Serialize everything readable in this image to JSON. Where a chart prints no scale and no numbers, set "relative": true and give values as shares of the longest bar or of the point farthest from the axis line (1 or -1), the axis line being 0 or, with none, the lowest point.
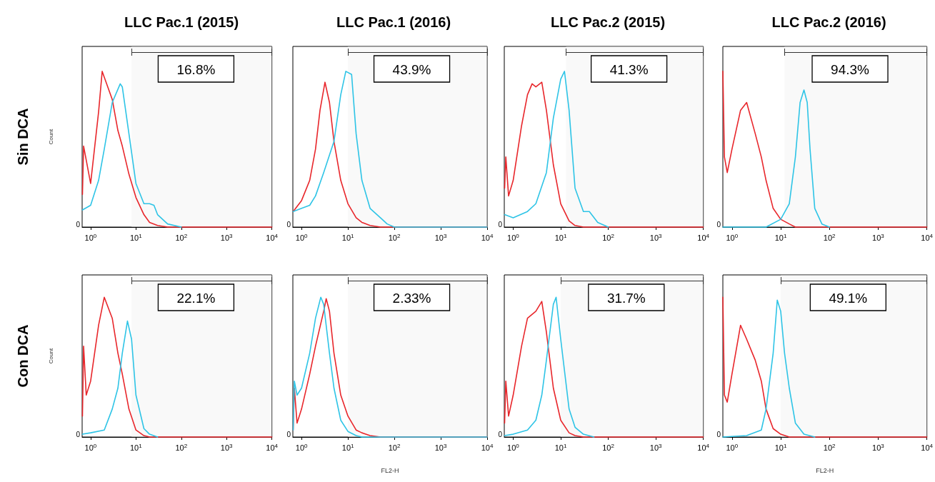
{
  "chart_data": [
    {
      "type": "line",
      "title": "LLC Pac.1 (2015)",
      "ylabel": "Count",
      "annotations": [
        "Sin DCA",
        "0"
      ],
      "relative": true,
      "log": "x",
      "xlim": [
        0.65,
        10000
      ],
      "xticks": [
        {
          "value": 1,
          "label": "10$^{0}$"
        },
        {
          "value": 10,
          "label": "10$^{1}$"
        },
        {
          "value": 100,
          "label": "10$^{2}$"
        },
        {
          "value": 1000,
          "label": "10$^{3}$"
        },
        {
          "value": 10000,
          "label": "10$^{4}$"
        }
      ],
      "marker": "none",
      "line_style": "solid",
      "bands": [
        {
          "axis": "x",
          "from": 8,
          "to": 10000,
          "label": "16.8%"
        }
      ],
      "series": [
        {
          "color": "#e8262b",
          "x": [
            0.66,
            0.7,
            1,
            1.5,
            1.8,
            3,
            4,
            5,
            7,
            10,
            15,
            20,
            30,
            50,
            10000
          ],
          "values": [
            0.21,
            0.52,
            0.28,
            0.74,
            1,
            0.82,
            0.62,
            0.52,
            0.34,
            0.19,
            0.08,
            0.03,
            0.01,
            0,
            0
          ]
        },
        {
          "color": "#2ec4e6",
          "x": [
            0.66,
            1,
            1.5,
            2,
            3,
            4.5,
            5,
            7,
            10,
            15,
            20,
            25,
            30,
            50,
            100
          ],
          "values": [
            0.11,
            0.14,
            0.3,
            0.5,
            0.8,
            0.92,
            0.9,
            0.6,
            0.28,
            0.15,
            0.15,
            0.14,
            0.08,
            0.02,
            0
          ]
        }
      ]
    },
    {
      "type": "line",
      "title": "LLC Pac.1 (2016)",
      "annotations": [
        "0"
      ],
      "relative": true,
      "log": "x",
      "xlim": [
        0.65,
        10000
      ],
      "xticks": [
        {
          "value": 1,
          "label": "10$^{0}$"
        },
        {
          "value": 10,
          "label": "10$^{1}$"
        },
        {
          "value": 100,
          "label": "10$^{2}$"
        },
        {
          "value": 1000,
          "label": "10$^{3}$"
        },
        {
          "value": 10000,
          "label": "10$^{4}$"
        }
      ],
      "marker": "none",
      "line_style": "solid",
      "bands": [
        {
          "axis": "x",
          "from": 10,
          "to": 10000,
          "label": "43.9%"
        }
      ],
      "series": [
        {
          "color": "#e8262b",
          "x": [
            0.66,
            1,
            1.5,
            2,
            2.5,
            3.2,
            4,
            5,
            7,
            10,
            15,
            20,
            30,
            50,
            10000
          ],
          "values": [
            0.1,
            0.17,
            0.3,
            0.5,
            0.75,
            0.93,
            0.8,
            0.55,
            0.3,
            0.15,
            0.06,
            0.03,
            0.01,
            0,
            0
          ]
        },
        {
          "color": "#2ec4e6",
          "x": [
            0.66,
            1,
            1.5,
            2,
            3,
            5,
            7,
            9,
            12,
            15,
            20,
            30,
            50,
            70,
            100,
            10000
          ],
          "values": [
            0.1,
            0.12,
            0.14,
            0.2,
            0.35,
            0.55,
            0.85,
            1,
            0.98,
            0.6,
            0.3,
            0.12,
            0.06,
            0.02,
            0,
            0
          ]
        }
      ]
    },
    {
      "type": "line",
      "title": "LLC Pac.2 (2015)",
      "annotations": [
        "0"
      ],
      "relative": true,
      "log": "x",
      "xlim": [
        0.65,
        10000
      ],
      "xticks": [
        {
          "value": 1,
          "label": "10$^{0}$"
        },
        {
          "value": 10,
          "label": "10$^{1}$"
        },
        {
          "value": 100,
          "label": "10$^{2}$"
        },
        {
          "value": 1000,
          "label": "10$^{3}$"
        },
        {
          "value": 10000,
          "label": "10$^{4}$"
        }
      ],
      "marker": "none",
      "line_style": "solid",
      "bands": [
        {
          "axis": "x",
          "from": 13,
          "to": 10000,
          "label": "41.3%"
        }
      ],
      "series": [
        {
          "color": "#e8262b",
          "x": [
            0.66,
            0.7,
            0.8,
            1,
            1.5,
            2,
            2.5,
            3,
            4,
            5,
            7,
            10,
            15,
            20,
            30,
            10000
          ],
          "values": [
            0.25,
            0.45,
            0.2,
            0.3,
            0.65,
            0.85,
            0.92,
            0.9,
            0.93,
            0.75,
            0.4,
            0.15,
            0.04,
            0.01,
            0,
            0
          ]
        },
        {
          "color": "#2ec4e6",
          "x": [
            0.66,
            1,
            2,
            3,
            5,
            7,
            10,
            12,
            15,
            20,
            30,
            40,
            60,
            100
          ],
          "values": [
            0.08,
            0.06,
            0.1,
            0.15,
            0.35,
            0.7,
            0.95,
            1,
            0.75,
            0.25,
            0.1,
            0.1,
            0.03,
            0
          ]
        }
      ]
    },
    {
      "type": "line",
      "title": "LLC Pac.2 (2016)",
      "annotations": [
        "0"
      ],
      "relative": true,
      "log": "x",
      "xlim": [
        0.65,
        10000
      ],
      "xticks": [
        {
          "value": 1,
          "label": "10$^{0}$"
        },
        {
          "value": 10,
          "label": "10$^{1}$"
        },
        {
          "value": 100,
          "label": "10$^{2}$"
        },
        {
          "value": 1000,
          "label": "10$^{3}$"
        },
        {
          "value": 10000,
          "label": "10$^{4}$"
        }
      ],
      "marker": "none",
      "line_style": "solid",
      "bands": [
        {
          "axis": "x",
          "from": 12,
          "to": 10000,
          "label": "94.3%"
        }
      ],
      "series": [
        {
          "color": "#e8262b",
          "x": [
            0.65,
            0.7,
            0.8,
            1,
            1.5,
            2,
            3,
            4,
            5,
            7,
            10,
            15,
            20,
            10000
          ],
          "values": [
            1,
            0.45,
            0.35,
            0.5,
            0.75,
            0.8,
            0.6,
            0.45,
            0.3,
            0.12,
            0.05,
            0.02,
            0,
            0
          ]
        },
        {
          "color": "#2ec4e6",
          "x": [
            0.65,
            5,
            10,
            15,
            20,
            25,
            30,
            35,
            40,
            50,
            70,
            100
          ],
          "values": [
            0,
            0,
            0.05,
            0.15,
            0.45,
            0.8,
            0.88,
            0.8,
            0.5,
            0.12,
            0.02,
            0
          ]
        }
      ]
    },
    {
      "type": "line",
      "ylabel": "Count",
      "annotations": [
        "Con DCA",
        "0"
      ],
      "relative": true,
      "log": "x",
      "xlim": [
        0.65,
        10000
      ],
      "xticks": [
        {
          "value": 1,
          "label": "10$^{0}$"
        },
        {
          "value": 10,
          "label": "10$^{1}$"
        },
        {
          "value": 100,
          "label": "10$^{2}$"
        },
        {
          "value": 1000,
          "label": "10$^{3}$"
        },
        {
          "value": 10000,
          "label": "10$^{4}$"
        }
      ],
      "marker": "none",
      "line_style": "solid",
      "bands": [
        {
          "axis": "x",
          "from": 8,
          "to": 10000,
          "label": "22.1%"
        }
      ],
      "series": [
        {
          "color": "#e8262b",
          "x": [
            0.66,
            0.7,
            0.8,
            1,
            1.5,
            2,
            3,
            4,
            5,
            7,
            10,
            15,
            20,
            10000
          ],
          "values": [
            0.15,
            0.65,
            0.3,
            0.4,
            0.8,
            1,
            0.85,
            0.6,
            0.45,
            0.2,
            0.05,
            0.01,
            0,
            0
          ]
        },
        {
          "color": "#2ec4e6",
          "x": [
            0.66,
            1,
            2,
            3,
            4,
            5,
            6.5,
            8,
            10,
            15,
            20,
            30
          ],
          "values": [
            0.02,
            0.03,
            0.05,
            0.2,
            0.35,
            0.6,
            0.83,
            0.7,
            0.3,
            0.06,
            0.02,
            0
          ]
        }
      ]
    },
    {
      "type": "line",
      "xlabel": "FL2-H",
      "annotations": [
        "0"
      ],
      "relative": true,
      "log": "x",
      "xlim": [
        0.65,
        10000
      ],
      "xticks": [
        {
          "value": 1,
          "label": "10$^{0}$"
        },
        {
          "value": 10,
          "label": "10$^{1}$"
        },
        {
          "value": 100,
          "label": "10$^{2}$"
        },
        {
          "value": 1000,
          "label": "10$^{3}$"
        },
        {
          "value": 10000,
          "label": "10$^{4}$"
        }
      ],
      "marker": "none",
      "line_style": "solid",
      "bands": [
        {
          "axis": "x",
          "from": 10,
          "to": 10000,
          "label": "2.33%"
        }
      ],
      "series": [
        {
          "color": "#e8262b",
          "x": [
            0.66,
            0.7,
            0.8,
            1,
            1.5,
            2,
            3,
            3.4,
            4,
            5,
            7,
            10,
            15,
            20,
            30,
            50,
            10000
          ],
          "values": [
            0.05,
            0.35,
            0.1,
            0.2,
            0.45,
            0.65,
            0.9,
            0.99,
            0.9,
            0.6,
            0.3,
            0.15,
            0.05,
            0.03,
            0.01,
            0,
            0
          ]
        },
        {
          "color": "#2ec4e6",
          "x": [
            0.66,
            0.7,
            0.8,
            1,
            1.5,
            2,
            2.6,
            3,
            4,
            5,
            7,
            10,
            15,
            20,
            10000
          ],
          "values": [
            0.05,
            0.4,
            0.3,
            0.35,
            0.6,
            0.85,
            1,
            0.95,
            0.6,
            0.35,
            0.12,
            0.04,
            0.01,
            0,
            0
          ]
        }
      ]
    },
    {
      "type": "line",
      "annotations": [
        "0"
      ],
      "relative": true,
      "log": "x",
      "xlim": [
        0.65,
        10000
      ],
      "xticks": [
        {
          "value": 1,
          "label": "10$^{0}$"
        },
        {
          "value": 10,
          "label": "10$^{1}$"
        },
        {
          "value": 100,
          "label": "10$^{2}$"
        },
        {
          "value": 1000,
          "label": "10$^{3}$"
        },
        {
          "value": 10000,
          "label": "10$^{4}$"
        }
      ],
      "marker": "none",
      "line_style": "solid",
      "bands": [
        {
          "axis": "x",
          "from": 10,
          "to": 10000,
          "label": "31.7%"
        }
      ],
      "series": [
        {
          "color": "#e8262b",
          "x": [
            0.66,
            0.7,
            0.8,
            1,
            1.5,
            2,
            3,
            4,
            5,
            7,
            10,
            15,
            20,
            30,
            10000
          ],
          "values": [
            0.1,
            0.4,
            0.15,
            0.3,
            0.65,
            0.85,
            0.9,
            0.97,
            0.75,
            0.35,
            0.12,
            0.03,
            0.01,
            0,
            0
          ]
        },
        {
          "color": "#2ec4e6",
          "x": [
            0.66,
            1,
            2,
            3,
            4,
            5,
            7,
            8,
            10,
            15,
            20,
            30,
            50
          ],
          "values": [
            0.01,
            0.02,
            0.05,
            0.12,
            0.3,
            0.55,
            0.95,
            1,
            0.7,
            0.2,
            0.07,
            0.02,
            0
          ]
        }
      ]
    },
    {
      "type": "line",
      "xlabel": "FL2-H",
      "annotations": [
        "0"
      ],
      "relative": true,
      "log": "x",
      "xlim": [
        0.65,
        10000
      ],
      "xticks": [
        {
          "value": 1,
          "label": "10$^{0}$"
        },
        {
          "value": 10,
          "label": "10$^{1}$"
        },
        {
          "value": 100,
          "label": "10$^{2}$"
        },
        {
          "value": 1000,
          "label": "10$^{3}$"
        },
        {
          "value": 10000,
          "label": "10$^{4}$"
        }
      ],
      "marker": "none",
      "line_style": "solid",
      "bands": [
        {
          "axis": "x",
          "from": 10,
          "to": 10000,
          "label": "49.1%"
        }
      ],
      "series": [
        {
          "color": "#e8262b",
          "x": [
            0.65,
            0.7,
            0.8,
            1,
            1.5,
            2,
            3,
            4,
            5,
            7,
            10,
            15,
            10000
          ],
          "values": [
            1,
            0.3,
            0.25,
            0.45,
            0.8,
            0.7,
            0.55,
            0.4,
            0.2,
            0.06,
            0.02,
            0,
            0
          ]
        },
        {
          "color": "#2ec4e6",
          "x": [
            0.65,
            2,
            4,
            5,
            7,
            8.5,
            10,
            12,
            15,
            20,
            30,
            50
          ],
          "values": [
            0,
            0.01,
            0.05,
            0.2,
            0.6,
            0.98,
            0.9,
            0.6,
            0.35,
            0.1,
            0.02,
            0
          ]
        }
      ]
    }
  ]
}
